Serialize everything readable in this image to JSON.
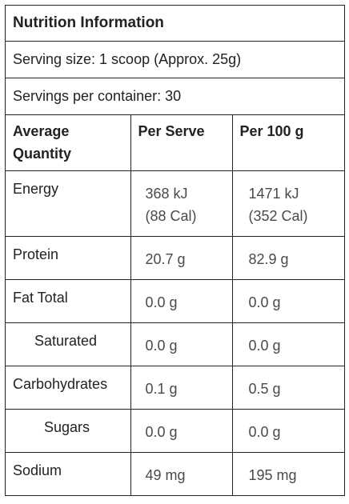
{
  "title": "Nutrition Information",
  "serving_size": "Serving size: 1 scoop (Approx. 25g)",
  "servings_per_container": "Servings per container: 30",
  "columns": [
    "Average Quantity",
    "Per Serve",
    "Per 100 g"
  ],
  "rows": [
    {
      "name": "Energy",
      "per_serve": [
        "368 kJ",
        "(88 Cal)"
      ],
      "per_100g": [
        "1471 kJ",
        "(352 Cal)"
      ]
    },
    {
      "name": "Protein",
      "per_serve": [
        "20.7 g"
      ],
      "per_100g": [
        "82.9 g"
      ]
    },
    {
      "name": "Fat Total",
      "per_serve": [
        "0.0 g"
      ],
      "per_100g": [
        "0.0 g"
      ]
    },
    {
      "name": "Saturated",
      "per_serve": [
        "0.0 g"
      ],
      "per_100g": [
        "0.0 g"
      ]
    },
    {
      "name": "Carbohydrates",
      "per_serve": [
        "0.1 g"
      ],
      "per_100g": [
        "0.5 g"
      ]
    },
    {
      "name": "Sugars",
      "per_serve": [
        "0.0 g"
      ],
      "per_100g": [
        "0.0 g"
      ]
    },
    {
      "name": "Sodium",
      "per_serve": [
        "49 mg"
      ],
      "per_100g": [
        "195 mg"
      ]
    }
  ],
  "colors": {
    "border": "#222222",
    "label_text": "#222222",
    "value_text": "#4a4a4a"
  }
}
